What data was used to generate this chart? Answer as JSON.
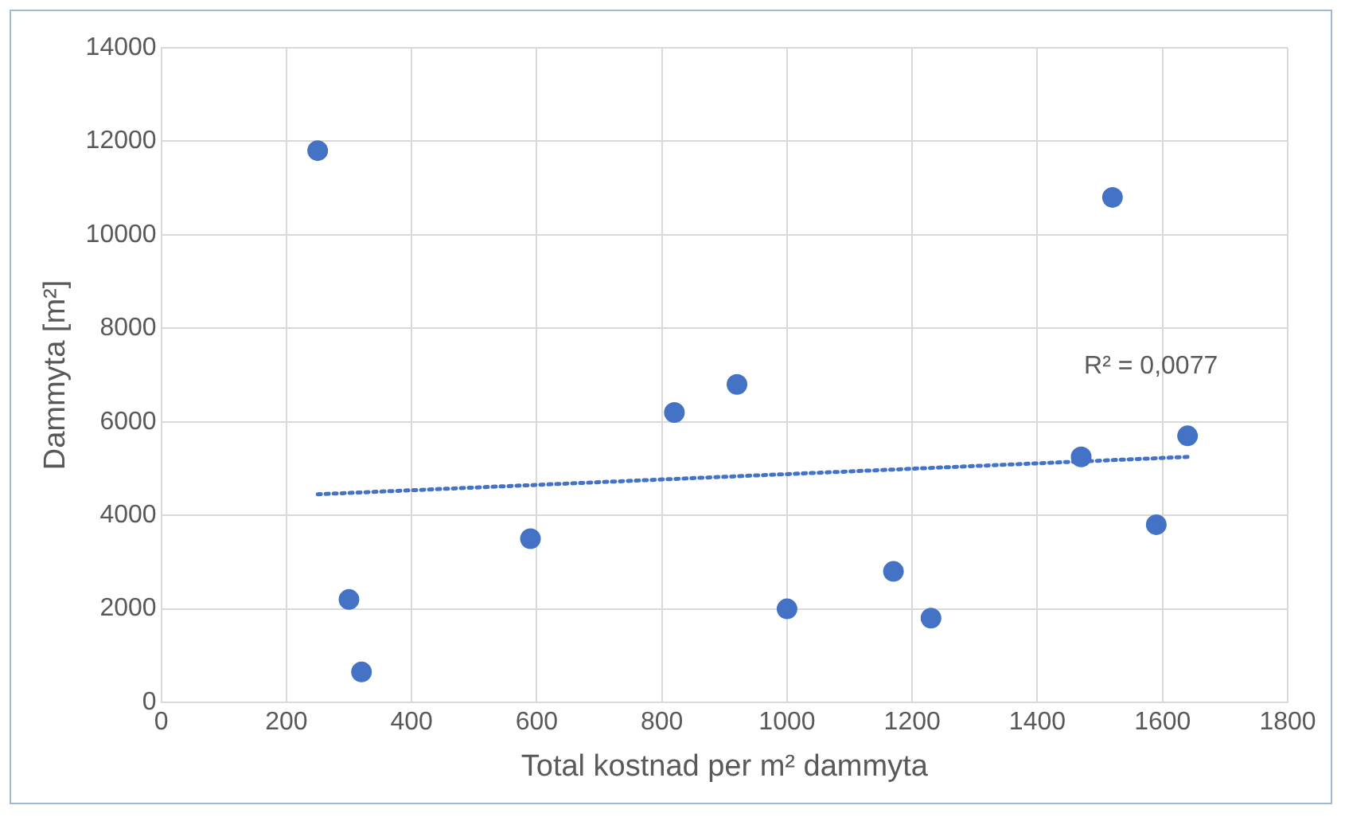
{
  "chart_data": {
    "type": "scatter",
    "xlabel": "Total kostnad per m² dammyta",
    "ylabel": "Dammyta [m²]",
    "series": [
      {
        "color": "#4472c4",
        "marker": "circle",
        "x": [
          250,
          300,
          320,
          590,
          820,
          920,
          1000,
          1170,
          1230,
          1470,
          1520,
          1590,
          1640
        ],
        "values": [
          11800,
          2200,
          650,
          3500,
          6200,
          6800,
          2000,
          2800,
          1800,
          5250,
          10800,
          3800,
          5700
        ]
      },
      {
        "type": "line",
        "color": "#4472c4",
        "marker": "none",
        "line_style": "dotted",
        "x": [
          250,
          1640
        ],
        "values": [
          4450,
          5250
        ]
      }
    ],
    "xlim": [
      0,
      1800
    ],
    "xticks": [
      0,
      200,
      400,
      600,
      800,
      1000,
      1200,
      1400,
      1600,
      1800
    ],
    "ylim": [
      0,
      14000
    ],
    "yticks": [
      0,
      2000,
      4000,
      6000,
      8000,
      10000,
      12000,
      14000
    ],
    "grid": true,
    "legend": false,
    "annotations": [
      "R² = 0,0077"
    ]
  }
}
